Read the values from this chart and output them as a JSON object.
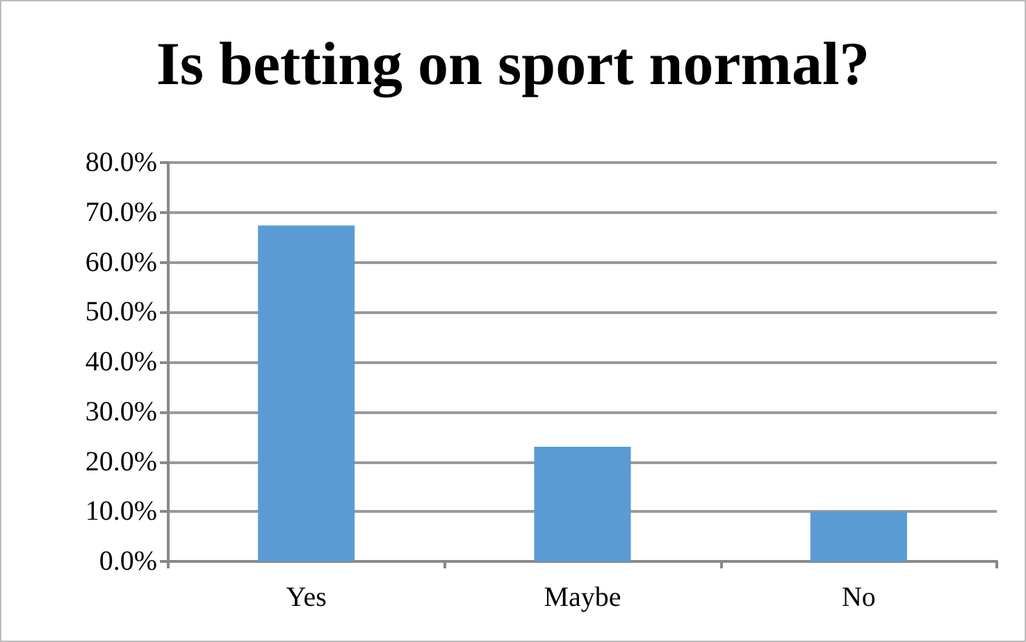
{
  "chart_data": {
    "type": "bar",
    "title": "Is betting on sport normal?",
    "categories": [
      "Yes",
      "Maybe",
      "No"
    ],
    "values": [
      67.4,
      23.0,
      10.0
    ],
    "color": "#5b9bd5",
    "ylim": [
      0,
      80
    ],
    "yticks": [
      {
        "value": 0,
        "label": "0.0%"
      },
      {
        "value": 10,
        "label": "10.0%"
      },
      {
        "value": 20,
        "label": "20.0%"
      },
      {
        "value": 30,
        "label": "30.0%"
      },
      {
        "value": 40,
        "label": "40.0%"
      },
      {
        "value": 50,
        "label": "50.0%"
      },
      {
        "value": 60,
        "label": "60.0%"
      },
      {
        "value": 70,
        "label": "70.0%"
      },
      {
        "value": 80,
        "label": "80.0%"
      }
    ],
    "grid": "y"
  }
}
